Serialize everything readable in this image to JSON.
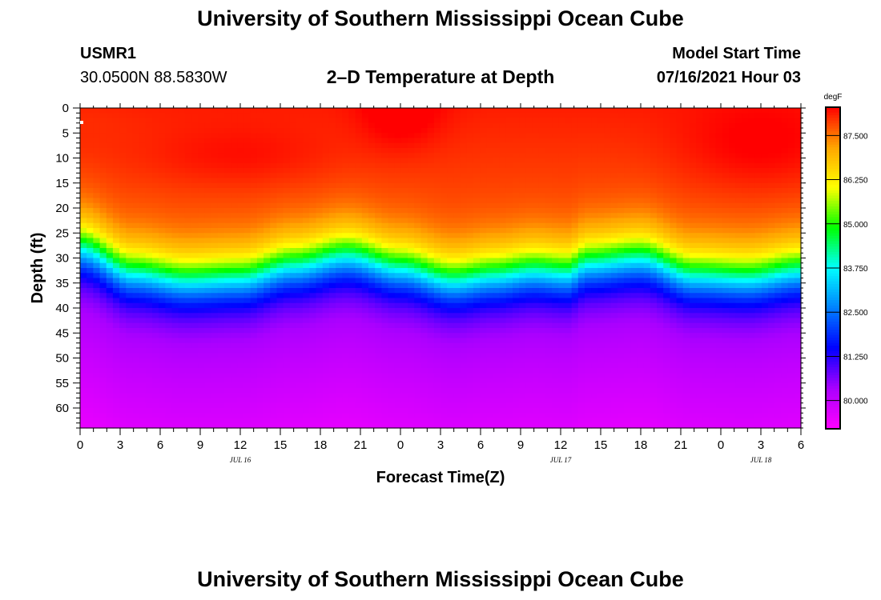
{
  "page": {
    "title_top": "University of Southern Mississippi Ocean Cube",
    "title_bottom": "University of Southern Mississippi Ocean Cube",
    "station_id": "USMR1",
    "station_coords": "30.0500N  88.5830W",
    "plot_subtitle": "2–D Temperature at Depth",
    "model_start_label": "Model Start Time",
    "model_start_value": "07/16/2021 Hour 03"
  },
  "chart_data": {
    "type": "heatmap",
    "title": "2–D Temperature at Depth",
    "xlabel": "Forecast Time(Z)",
    "ylabel": "Depth (ft)",
    "x_hours_range": [
      0,
      54
    ],
    "ylim": [
      0,
      64
    ],
    "x_ticks": [
      {
        "hour": 0,
        "label": "0"
      },
      {
        "hour": 3,
        "label": "3"
      },
      {
        "hour": 6,
        "label": "6"
      },
      {
        "hour": 9,
        "label": "9"
      },
      {
        "hour": 12,
        "label": "12"
      },
      {
        "hour": 15,
        "label": "15"
      },
      {
        "hour": 18,
        "label": "18"
      },
      {
        "hour": 21,
        "label": "21"
      },
      {
        "hour": 24,
        "label": "0"
      },
      {
        "hour": 27,
        "label": "3"
      },
      {
        "hour": 30,
        "label": "6"
      },
      {
        "hour": 33,
        "label": "9"
      },
      {
        "hour": 36,
        "label": "12"
      },
      {
        "hour": 39,
        "label": "15"
      },
      {
        "hour": 42,
        "label": "18"
      },
      {
        "hour": 45,
        "label": "21"
      },
      {
        "hour": 48,
        "label": "0"
      },
      {
        "hour": 51,
        "label": "3"
      },
      {
        "hour": 54,
        "label": "6"
      }
    ],
    "day_labels": [
      {
        "hour": 12,
        "label": "JUL 16"
      },
      {
        "hour": 36,
        "label": "JUL 17"
      },
      {
        "hour": 51,
        "label": "JUL 18"
      }
    ],
    "y_ticks": [
      0,
      5,
      10,
      15,
      20,
      25,
      30,
      35,
      40,
      45,
      50,
      55,
      60
    ],
    "colorbar": {
      "unit": "degF",
      "range": [
        79.2,
        88.3
      ],
      "ticks": [
        "87.500",
        "86.250",
        "85.000",
        "83.750",
        "82.500",
        "81.250",
        "80.000"
      ],
      "tick_values": [
        87.5,
        86.25,
        85.0,
        83.75,
        82.5,
        81.25,
        80.0
      ]
    },
    "thermocline_profile": {
      "comment": "Depth (ft) of the 83.75 degF isotherm at forecast hours",
      "hours": [
        0,
        4,
        8,
        12,
        16,
        20,
        24,
        28,
        31,
        34,
        36.5,
        38,
        42,
        46,
        50,
        54
      ],
      "depth_83_75": [
        28.0,
        33.0,
        34.5,
        34.0,
        31.5,
        29.5,
        32.0,
        34.5,
        33.5,
        32.5,
        33.0,
        31.0,
        30.0,
        33.5,
        34.0,
        32.5
      ]
    },
    "surface_warm_core": {
      "hour": 0,
      "depth": 4,
      "value": 88.0
    }
  },
  "colors": {
    "scale": [
      "#ff00ff",
      "#aa00ff",
      "#0000ff",
      "#0080ff",
      "#00ffff",
      "#00ff00",
      "#ffff00",
      "#ffa500",
      "#ff0000"
    ]
  }
}
